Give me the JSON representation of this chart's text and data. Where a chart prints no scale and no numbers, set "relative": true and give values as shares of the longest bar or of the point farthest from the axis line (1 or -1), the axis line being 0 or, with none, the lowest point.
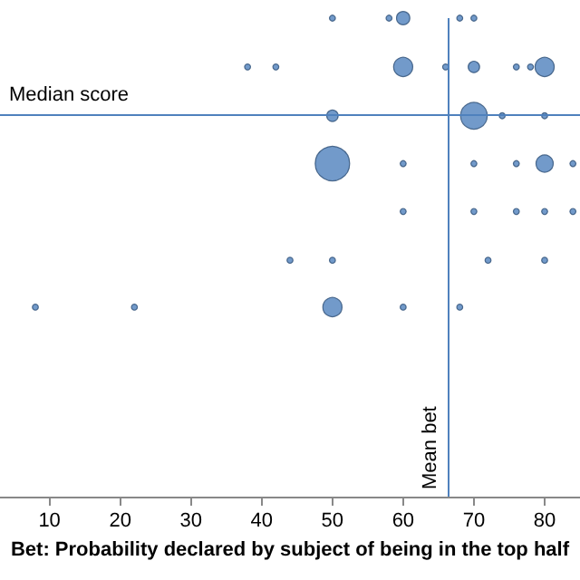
{
  "chart_data": {
    "type": "bubble",
    "relative": true,
    "xlabel": "Bet: Probability declared by subject of being in the top half",
    "xlim": [
      3,
      85
    ],
    "xticks": [
      10,
      20,
      30,
      40,
      50,
      60,
      70,
      80
    ],
    "tick_labels": "x",
    "grid": false,
    "series": [
      {
        "color": "#4f81bd",
        "x": [
          50,
          58,
          60,
          68,
          70,
          38,
          42,
          60,
          66,
          70,
          76,
          78,
          80,
          50,
          70,
          74,
          80,
          50,
          60,
          70,
          76,
          80,
          84,
          60,
          70,
          76,
          80,
          84,
          44,
          50,
          72,
          80,
          8,
          22,
          50,
          60,
          68
        ],
        "values": [
          1,
          1,
          1,
          1,
          1,
          0.898,
          0.898,
          0.898,
          0.898,
          0.898,
          0.898,
          0.898,
          0.898,
          0.796,
          0.796,
          0.796,
          0.796,
          0.696,
          0.696,
          0.696,
          0.696,
          0.696,
          0.696,
          0.596,
          0.596,
          0.596,
          0.596,
          0.596,
          0.494,
          0.494,
          0.494,
          0.494,
          0.396,
          0.396,
          0.396,
          0.396,
          0.396
        ],
        "sizes": [
          0.03,
          0.03,
          0.15,
          0.03,
          0.03,
          0.03,
          0.03,
          0.31,
          0.03,
          0.11,
          0.03,
          0.03,
          0.31,
          0.11,
          0.6,
          0.03,
          0.03,
          1,
          0.03,
          0.03,
          0.03,
          0.25,
          0.03,
          0.03,
          0.03,
          0.03,
          0.03,
          0.03,
          0.03,
          0.03,
          0.03,
          0.03,
          0.03,
          0.03,
          0.31,
          0.03,
          0.03
        ]
      }
    ],
    "ref_lines": [
      {
        "axis": "y",
        "value": 0.796,
        "label": "Median score",
        "color": "#4f81bd"
      },
      {
        "axis": "x",
        "value": 66.3,
        "label": "Mean bet",
        "color": "#4f81bd"
      }
    ]
  }
}
